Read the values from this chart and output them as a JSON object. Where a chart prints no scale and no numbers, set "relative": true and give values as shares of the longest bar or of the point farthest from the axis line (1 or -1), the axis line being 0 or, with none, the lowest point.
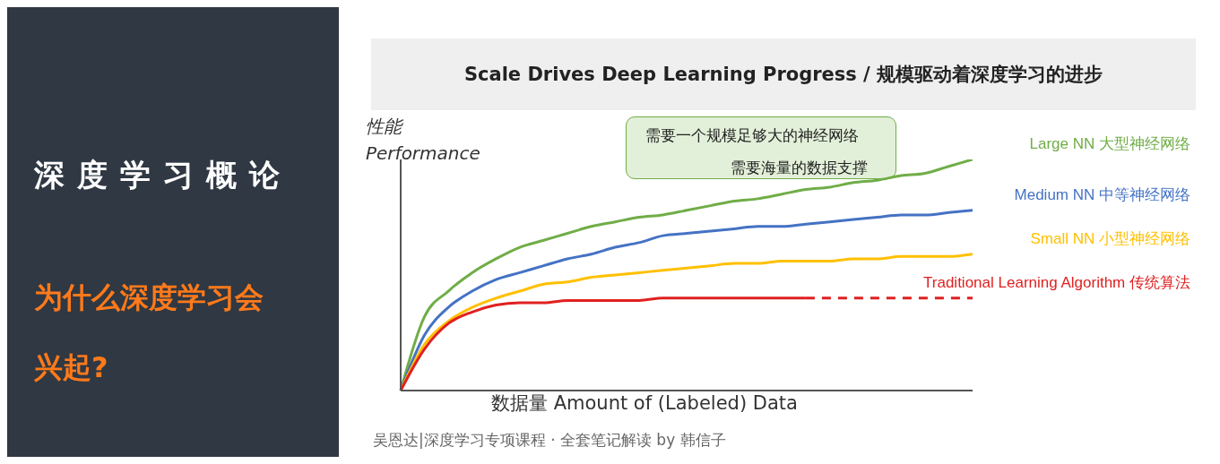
{
  "chart_data": {
    "type": "line",
    "title": "Scale Drives Deep Learning Progress / 规模驱动着深度学习的进步",
    "xlabel": "数据量 Amount of (Labeled) Data",
    "ylabel": "性能 Performance",
    "relative": true,
    "legend": false,
    "marker": "none",
    "grid": false,
    "categories": [
      null,
      null,
      null,
      null,
      null,
      null,
      null,
      null,
      null,
      null,
      null,
      null,
      null,
      null,
      null,
      null,
      null,
      null,
      null,
      null,
      null,
      null,
      null,
      null,
      null
    ],
    "series": [
      {
        "name": "Large NN 大型神经网络",
        "color": "#70ad47",
        "line_style": "solid",
        "values": [
          0,
          0.32,
          0.43,
          0.51,
          0.57,
          0.62,
          0.65,
          0.68,
          0.71,
          0.73,
          0.75,
          0.76,
          0.78,
          0.8,
          0.82,
          0.83,
          0.85,
          0.87,
          0.88,
          0.9,
          0.91,
          0.93,
          0.94,
          0.97,
          1
        ]
      },
      {
        "name": "Medium NN 中等神经网络",
        "color": "#4472c4",
        "line_style": "solid",
        "values": [
          0,
          0.24,
          0.36,
          0.43,
          0.48,
          0.51,
          0.54,
          0.57,
          0.59,
          0.62,
          0.64,
          0.67,
          0.68,
          0.69,
          0.7,
          0.71,
          0.71,
          0.72,
          0.73,
          0.74,
          0.75,
          0.76,
          0.76,
          0.77,
          0.78
        ]
      },
      {
        "name": "Small NN 小型神经网络",
        "color": "#ffc000",
        "line_style": "solid",
        "values": [
          0,
          0.2,
          0.3,
          0.36,
          0.4,
          0.43,
          0.46,
          0.47,
          0.49,
          0.5,
          0.51,
          0.52,
          0.53,
          0.54,
          0.55,
          0.55,
          0.56,
          0.56,
          0.56,
          0.57,
          0.57,
          0.58,
          0.58,
          0.58,
          0.59
        ]
      },
      {
        "name": "Traditional Learning Algorithm 传统算法",
        "color": "#e02020",
        "line_style": "solid",
        "values": [
          0,
          0.18,
          0.29,
          0.34,
          0.37,
          0.38,
          0.38,
          0.39,
          0.39,
          0.39,
          0.39,
          0.4,
          0.4,
          0.4,
          0.4,
          0.4,
          0.4,
          0.4,
          null,
          null,
          null,
          null,
          null,
          null,
          null
        ]
      },
      {
        "color": "#e02020",
        "line_style": "dashed",
        "values": [
          null,
          null,
          null,
          null,
          null,
          null,
          null,
          null,
          null,
          null,
          null,
          null,
          null,
          null,
          null,
          null,
          null,
          0.4,
          0.4,
          0.4,
          0.4,
          0.4,
          0.4,
          0.4,
          0.4
        ]
      }
    ],
    "annotations": [
      "深度学习概论",
      "为什么深度学习会兴起?",
      "需要一个规模足够大的神经网络",
      "需要海量的数据支撑",
      "吴恩达|深度学习专项课程 · 全套笔记解读 by 韩信子"
    ]
  }
}
